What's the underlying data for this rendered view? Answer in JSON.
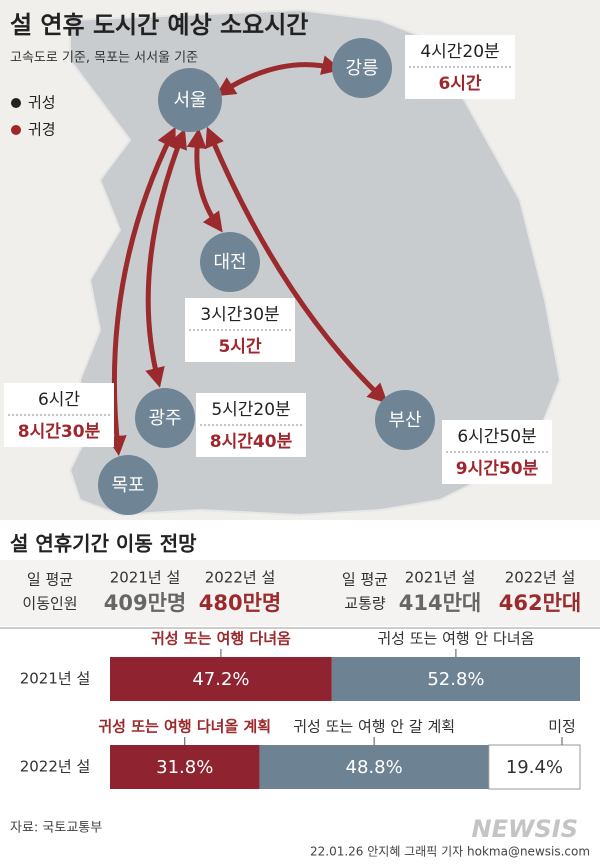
{
  "title": "설 연휴 도시간 예상 소요시간",
  "subtitle": "고속도로 기준, 목포는 서서울 기준",
  "legend": [
    {
      "name": "귀성",
      "color": "#222222"
    },
    {
      "name": "귀경",
      "color": "#a0262b"
    }
  ],
  "cities": [
    "서울",
    "강릉",
    "대전",
    "광주",
    "목포",
    "부산"
  ],
  "routes": [
    {
      "out": "4시간20분",
      "back": "6시간"
    },
    {
      "out": "3시간30분",
      "back": "5시간"
    },
    {
      "out": "5시간20분",
      "back": "8시간40분"
    },
    {
      "out": "6시간",
      "back": "8시간30분"
    },
    {
      "out": "6시간50분",
      "back": "9시간50분"
    }
  ],
  "section_title": "설 연휴기간 이동 전망",
  "stats": [
    {
      "label_lines": [
        "일 평균",
        "이동인원"
      ],
      "columns": [
        "2021년 설",
        "2022년 설"
      ],
      "values": [
        "409만명",
        "480만명"
      ]
    },
    {
      "label_lines": [
        "일 평균",
        "교통량"
      ],
      "columns": [
        "2021년 설",
        "2022년 설"
      ],
      "values": [
        "414만대",
        "462만대"
      ]
    }
  ],
  "chart_data": [
    {
      "type": "bar",
      "stacked": true,
      "orientation": "horizontal",
      "categories": [
        "2021년 설"
      ],
      "xlim": [
        0,
        100
      ],
      "series": [
        {
          "name": "귀성 또는 여행 다녀옴",
          "color": "#8f2430",
          "values": [
            47.2
          ],
          "value_labels": [
            "47.2%"
          ]
        },
        {
          "name": "귀성 또는 여행 안 다녀옴",
          "color": "#6d8394",
          "values": [
            52.8
          ],
          "value_labels": [
            "52.8%"
          ]
        }
      ]
    },
    {
      "type": "bar",
      "stacked": true,
      "orientation": "horizontal",
      "categories": [
        "2022년 설"
      ],
      "xlim": [
        0,
        100
      ],
      "series": [
        {
          "name": "귀성 또는 여행 다녀올 계획",
          "color": "#8f2430",
          "values": [
            31.8
          ],
          "value_labels": [
            "31.8%"
          ]
        },
        {
          "name": "귀성 또는 여행 안 갈 계획",
          "color": "#6d8394",
          "values": [
            48.8
          ],
          "value_labels": [
            "48.8%"
          ]
        },
        {
          "name": "미정",
          "color": "#ffffff",
          "values": [
            19.4
          ],
          "value_labels": [
            "19.4%"
          ]
        }
      ]
    }
  ],
  "source": "자료: 국토교통부",
  "credit": "22.01.26 안지혜 그래픽 기자 hokma@newsis.com",
  "logo": "NEWSIS"
}
